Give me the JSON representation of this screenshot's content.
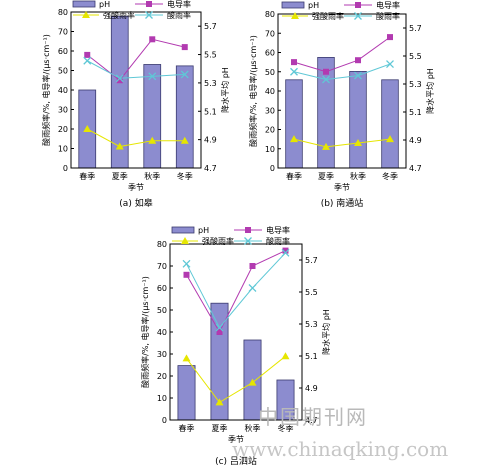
{
  "chart_data": [
    {
      "type": "bar",
      "caption": "(a) 如皋",
      "categories": [
        "春季",
        "夏季",
        "秋季",
        "冬季"
      ],
      "xlabel": "季节",
      "ylabel": "酸雨频率/%, 电导率/(μs·cm⁻¹)",
      "ylabel_right": "降水平均 pH",
      "ylim": [
        0,
        80
      ],
      "ylim_right": [
        4.7,
        5.8
      ],
      "yticks": [
        0,
        10,
        20,
        30,
        40,
        50,
        60,
        70,
        80
      ],
      "yticks_right": [
        4.7,
        4.9,
        5.1,
        5.3,
        5.5,
        5.7
      ],
      "legend": [
        "pH",
        "电导率",
        "强酸雨率",
        "酸雨率"
      ],
      "series": [
        {
          "name": "pH",
          "kind": "bar",
          "axis": "right",
          "values": [
            5.25,
            5.77,
            5.43,
            5.42
          ]
        },
        {
          "name": "电导率",
          "kind": "line",
          "axis": "left",
          "values": [
            58,
            45,
            66,
            62
          ]
        },
        {
          "name": "强酸雨率",
          "kind": "line",
          "axis": "left",
          "values": [
            20,
            11,
            14,
            14
          ]
        },
        {
          "name": "酸雨率",
          "kind": "line",
          "axis": "left",
          "values": [
            55,
            46,
            47,
            48
          ]
        }
      ]
    },
    {
      "type": "bar",
      "caption": "(b) 南通站",
      "categories": [
        "春季",
        "夏季",
        "秋季",
        "冬季"
      ],
      "xlabel": "季节",
      "ylabel": "酸雨频率/%, 电导率/(μs·cm⁻¹)",
      "ylabel_right": "降水平均 pH",
      "ylim": [
        0,
        80
      ],
      "ylim_right": [
        4.7,
        5.8
      ],
      "yticks": [
        0,
        10,
        20,
        30,
        40,
        50,
        60,
        70,
        80
      ],
      "yticks_right": [
        4.7,
        4.9,
        5.1,
        5.3,
        5.5,
        5.7
      ],
      "legend": [
        "pH",
        "电导率",
        "强酸雨率",
        "酸雨率"
      ],
      "series": [
        {
          "name": "pH",
          "kind": "bar",
          "axis": "right",
          "values": [
            5.33,
            5.49,
            5.39,
            5.33
          ]
        },
        {
          "name": "电导率",
          "kind": "line",
          "axis": "left",
          "values": [
            55,
            50,
            56,
            68
          ]
        },
        {
          "name": "强酸雨率",
          "kind": "line",
          "axis": "left",
          "values": [
            15,
            11,
            13,
            15
          ]
        },
        {
          "name": "酸雨率",
          "kind": "line",
          "axis": "left",
          "values": [
            50,
            46,
            48,
            54
          ]
        }
      ]
    },
    {
      "type": "bar",
      "caption": "(c) 吕泗站",
      "categories": [
        "春季",
        "夏季",
        "秋季",
        "冬季"
      ],
      "xlabel": "季节",
      "ylabel": "酸雨频率/%, 电导率/(μs·cm⁻¹)",
      "ylabel_right": "降水平均 pH",
      "ylim": [
        0,
        80
      ],
      "ylim_right": [
        4.7,
        5.8
      ],
      "yticks": [
        0,
        10,
        20,
        30,
        40,
        50,
        60,
        70,
        80
      ],
      "yticks_right": [
        4.7,
        4.9,
        5.1,
        5.3,
        5.5,
        5.7
      ],
      "legend": [
        "pH",
        "电导率",
        "强酸雨率",
        "酸雨率"
      ],
      "series": [
        {
          "name": "pH",
          "kind": "bar",
          "axis": "right",
          "values": [
            5.04,
            5.43,
            5.2,
            4.95
          ]
        },
        {
          "name": "电导率",
          "kind": "line",
          "axis": "left",
          "values": [
            66,
            40,
            70,
            77
          ]
        },
        {
          "name": "强酸雨率",
          "kind": "line",
          "axis": "left",
          "values": [
            28,
            8,
            17,
            29
          ]
        },
        {
          "name": "酸雨率",
          "kind": "line",
          "axis": "left",
          "values": [
            71,
            42,
            60,
            76
          ]
        }
      ]
    }
  ],
  "colors": {
    "bar_fill": "#8c8ccf",
    "bar_stroke": "#3a3a6e",
    "conductivity": "#b23ab0",
    "strong_acid": "#e6e600",
    "acid_rain": "#5fc8d6"
  },
  "watermark": {
    "text1": "中国期刊网",
    "text2": "www.chinaqking.com"
  }
}
